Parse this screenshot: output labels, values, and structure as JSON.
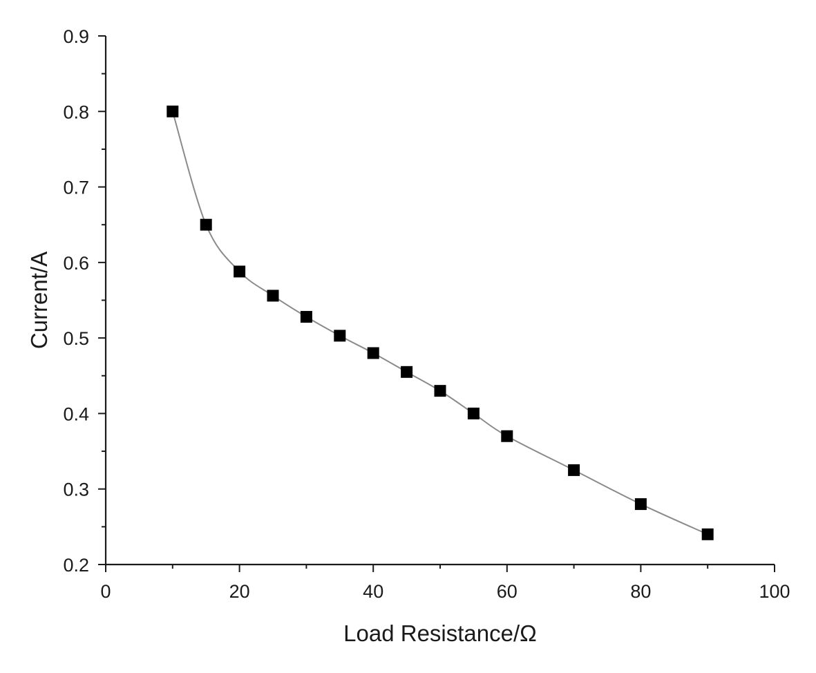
{
  "chart_data": {
    "type": "line",
    "title": "",
    "xlabel": "Load Resistance/Ω",
    "ylabel": "Current/A",
    "xlim": [
      0,
      100
    ],
    "ylim": [
      0.2,
      0.9
    ],
    "x_ticks": [
      0,
      20,
      40,
      60,
      80,
      100
    ],
    "x_tick_labels": [
      "0",
      "20",
      "40",
      "60",
      "80",
      "100"
    ],
    "y_ticks": [
      0.2,
      0.3,
      0.4,
      0.5,
      0.6,
      0.7,
      0.8,
      0.9
    ],
    "y_tick_labels": [
      "0.2",
      "0.3",
      "0.4",
      "0.5",
      "0.6",
      "0.7",
      "0.8",
      "0.9"
    ],
    "grid": false,
    "legend": "none",
    "series": [
      {
        "marker": "square",
        "color": "#000000",
        "line_color": "#8a8a8a",
        "x": [
          10,
          15,
          20,
          25,
          30,
          35,
          40,
          45,
          50,
          55,
          60,
          70,
          80,
          90
        ],
        "y": [
          0.8,
          0.65,
          0.588,
          0.556,
          0.528,
          0.503,
          0.48,
          0.455,
          0.43,
          0.4,
          0.37,
          0.325,
          0.28,
          0.24
        ]
      }
    ]
  }
}
